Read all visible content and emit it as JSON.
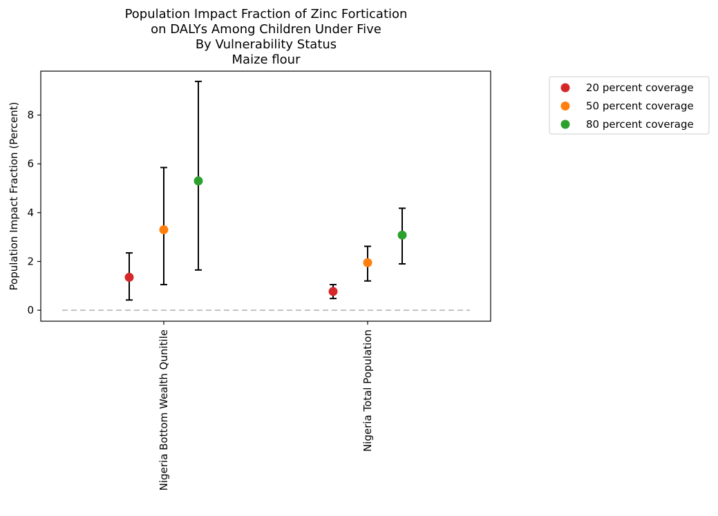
{
  "chart_data": {
    "type": "scatter",
    "title": [
      "Population Impact Fraction of Zinc Fortication",
      "on DALYs Among Children Under Five",
      "By Vulnerability Status",
      "Maize flour"
    ],
    "xlabel": "",
    "ylabel": "Population Impact Fraction (Percent)",
    "categories": [
      "Nigeria Bottom Wealth Qunitile",
      "Nigeria Total Population"
    ],
    "ylim": [
      -0.45,
      9.8
    ],
    "yticks": [
      0,
      2,
      4,
      6,
      8
    ],
    "reference_line": 0,
    "grid": false,
    "legend_placement": "outside upper-right",
    "series": [
      {
        "name": "20 percent coverage",
        "color": "#d62728",
        "values": [
          1.35,
          0.77
        ],
        "lower": [
          0.42,
          0.48
        ],
        "upper": [
          2.35,
          1.05
        ]
      },
      {
        "name": "50 percent coverage",
        "color": "#ff7f0e",
        "values": [
          3.3,
          1.95
        ],
        "lower": [
          1.05,
          1.2
        ],
        "upper": [
          5.85,
          2.62
        ]
      },
      {
        "name": "80 percent coverage",
        "color": "#2ca02c",
        "values": [
          5.3,
          3.08
        ],
        "lower": [
          1.65,
          1.9
        ],
        "upper": [
          9.38,
          4.18
        ]
      }
    ]
  }
}
